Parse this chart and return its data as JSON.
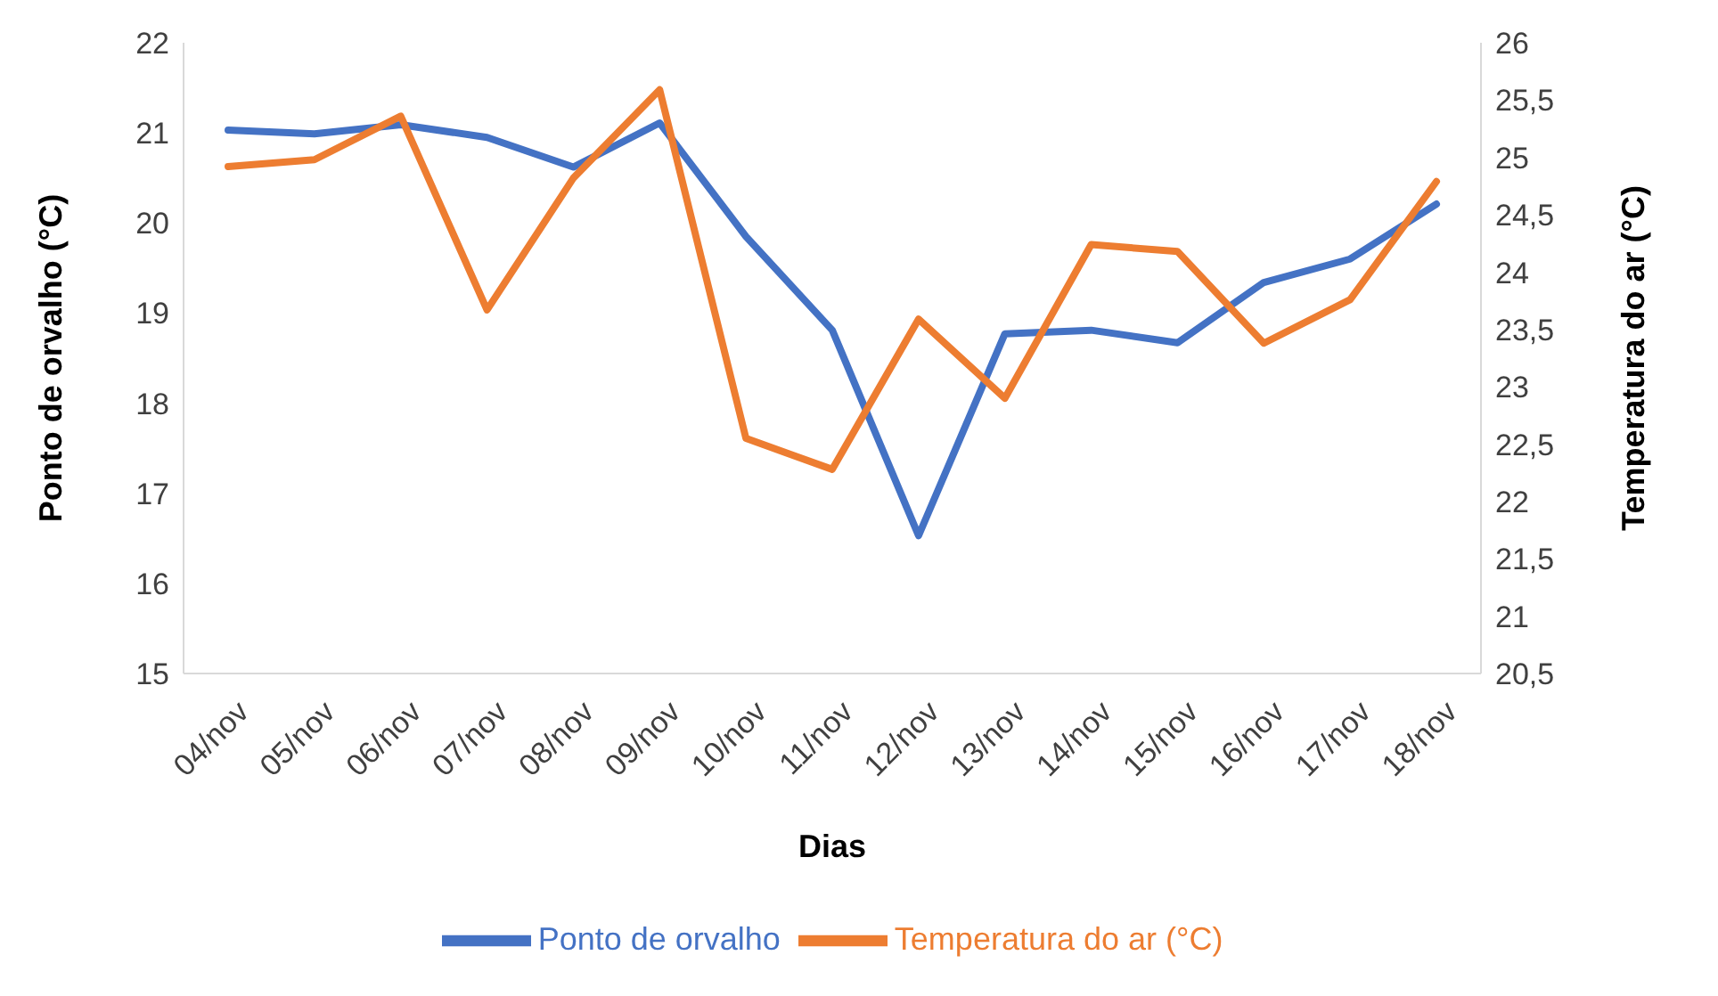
{
  "chart_data": {
    "type": "line",
    "xlabel": "Dias",
    "ylabel": "Ponto de orvalho (°C)",
    "y2label": "Temperatura do ar (°C)",
    "categories": [
      "04/nov",
      "05/nov",
      "06/nov",
      "07/nov",
      "08/nov",
      "09/nov",
      "10/nov",
      "11/nov",
      "12/nov",
      "13/nov",
      "14/nov",
      "15/nov",
      "16/nov",
      "17/nov",
      "18/nov"
    ],
    "series": [
      {
        "name": "Ponto de orvalho",
        "color": "#4472c4",
        "values": [
          21.03,
          20.99,
          21.09,
          20.95,
          20.62,
          21.11,
          19.85,
          18.81,
          16.53,
          18.77,
          18.81,
          18.67,
          19.34,
          19.6,
          20.21
        ]
      },
      {
        "name": "Temperatura  do ar (°C)",
        "color": "#ed7d31",
        "axis": "y2",
        "values": [
          24.92,
          24.98,
          25.36,
          23.67,
          24.82,
          25.59,
          22.55,
          22.28,
          23.59,
          22.9,
          24.24,
          24.18,
          23.38,
          23.76,
          24.79
        ]
      }
    ],
    "ylim": [
      15,
      22
    ],
    "yticks": [
      15,
      16,
      17,
      18,
      19,
      20,
      21,
      22
    ],
    "y2lim": [
      20.5,
      26
    ],
    "y2ticks": [
      {
        "value": 20.5,
        "label": "20,5"
      },
      21,
      {
        "value": 21.5,
        "label": "21,5"
      },
      22,
      {
        "value": 22.5,
        "label": "22,5"
      },
      23,
      {
        "value": 23.5,
        "label": "23,5"
      },
      24,
      {
        "value": 24.5,
        "label": "24,5"
      },
      25,
      {
        "value": 25.5,
        "label": "25,5"
      },
      26
    ],
    "grid": false,
    "legend": "bottom",
    "marker": "none",
    "line_style": "solid"
  }
}
